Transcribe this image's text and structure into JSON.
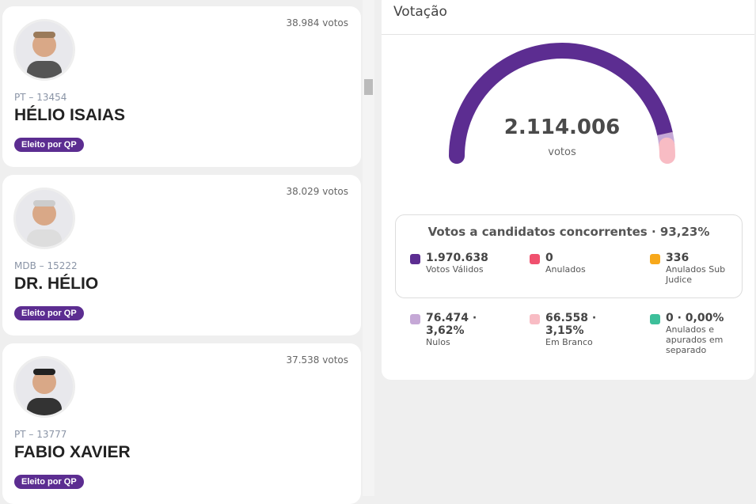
{
  "candidates": [
    {
      "votes": "38.984 votos",
      "party": "PT – 13454",
      "name": "HÉLIO ISAIAS",
      "badge": "Eleito por QP"
    },
    {
      "votes": "38.029 votos",
      "party": "MDB – 15222",
      "name": "DR. HÉLIO",
      "badge": "Eleito por QP"
    },
    {
      "votes": "37.538 votos",
      "party": "PT – 13777",
      "name": "FABIO XAVIER",
      "badge": "Eleito por QP"
    }
  ],
  "panel": {
    "title": "Votação",
    "total": {
      "value": 2114006,
      "label": "2.114.006"
    },
    "total_caption": "votos",
    "box_title": "Votos a candidatos concorrentes · 93,23%",
    "items": [
      {
        "value": 1970638,
        "label": "1.970.638",
        "caption": "Votos Válidos",
        "color": "#5c2d91"
      },
      {
        "value": 0,
        "label": "0",
        "caption": "Anulados",
        "color": "#f0506e"
      },
      {
        "value": 336,
        "label": "336",
        "caption": "Anulados Sub Judice",
        "color": "#f7a81b"
      },
      {
        "value": 76474,
        "label": "76.474 · 3,62%",
        "caption": "Nulos",
        "color": "#c5a8d6"
      },
      {
        "value": 66558,
        "label": "66.558 · 3,15%",
        "caption": "Em Branco",
        "color": "#f8bcc4"
      },
      {
        "value": 0,
        "label": "0 · 0,00%",
        "caption": "Anulados e apurados em separado",
        "color": "#3dbf9a"
      }
    ]
  }
}
